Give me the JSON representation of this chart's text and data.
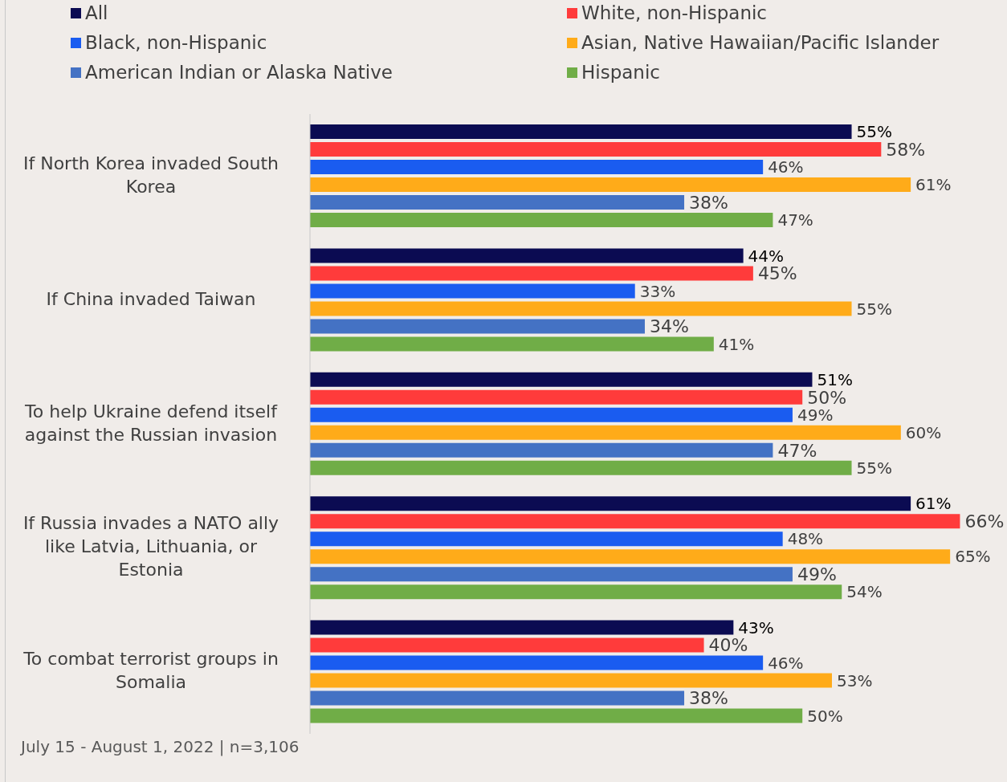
{
  "chart_data": {
    "type": "bar",
    "orientation": "horizontal",
    "legend": "top",
    "categories": [
      "If North Korea invaded South Korea",
      "If China invaded Taiwan",
      "To help Ukraine defend itself against the Russian invasion",
      "If Russia invades a NATO ally like Latvia, Lithuania, or Estonia",
      "To combat terrorist groups in Somalia"
    ],
    "series": [
      {
        "name": "All",
        "color": "#0b0b52",
        "values": [
          55,
          44,
          51,
          61,
          43
        ],
        "value_labels": [
          "55%",
          "44%",
          "51%",
          "61%",
          "43%"
        ]
      },
      {
        "name": "White, non-Hispanic",
        "color": "#ff3b3b",
        "values": [
          58,
          45,
          50,
          66,
          40
        ],
        "value_labels": [
          "58%",
          "45%",
          "50%",
          "66%",
          "40%"
        ]
      },
      {
        "name": "Black, non-Hispanic",
        "color": "#1a5cf0",
        "values": [
          46,
          33,
          49,
          48,
          46
        ],
        "value_labels": [
          "46%",
          "33%",
          "49%",
          "48%",
          "46%"
        ]
      },
      {
        "name": "Asian, Native Hawaiian/Pacific Islander",
        "color": "#ffab19",
        "values": [
          61,
          55,
          60,
          65,
          53
        ],
        "value_labels": [
          "61%",
          "55%",
          "60%",
          "65%",
          "53%"
        ]
      },
      {
        "name": "American Indian or Alaska Native",
        "color": "#4472c4",
        "values": [
          38,
          34,
          47,
          49,
          38
        ],
        "value_labels": [
          "38%",
          "34%",
          "47%",
          "49%",
          "38%"
        ]
      },
      {
        "name": "Hispanic",
        "color": "#70ad47",
        "values": [
          47,
          41,
          55,
          54,
          50
        ],
        "value_labels": [
          "47%",
          "41%",
          "55%",
          "54%",
          "50%"
        ]
      }
    ],
    "annotations": [
      "July 15 - August 1, 2022 | n=3,106"
    ]
  }
}
